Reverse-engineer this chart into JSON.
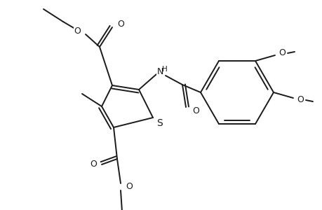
{
  "bg_color": "#ffffff",
  "line_color": "#1a1a1a",
  "line_width": 1.4,
  "font_size": 9,
  "fig_width": 4.6,
  "fig_height": 3.0,
  "dpi": 100,
  "xlim": [
    0,
    460
  ],
  "ylim": [
    0,
    300
  ]
}
